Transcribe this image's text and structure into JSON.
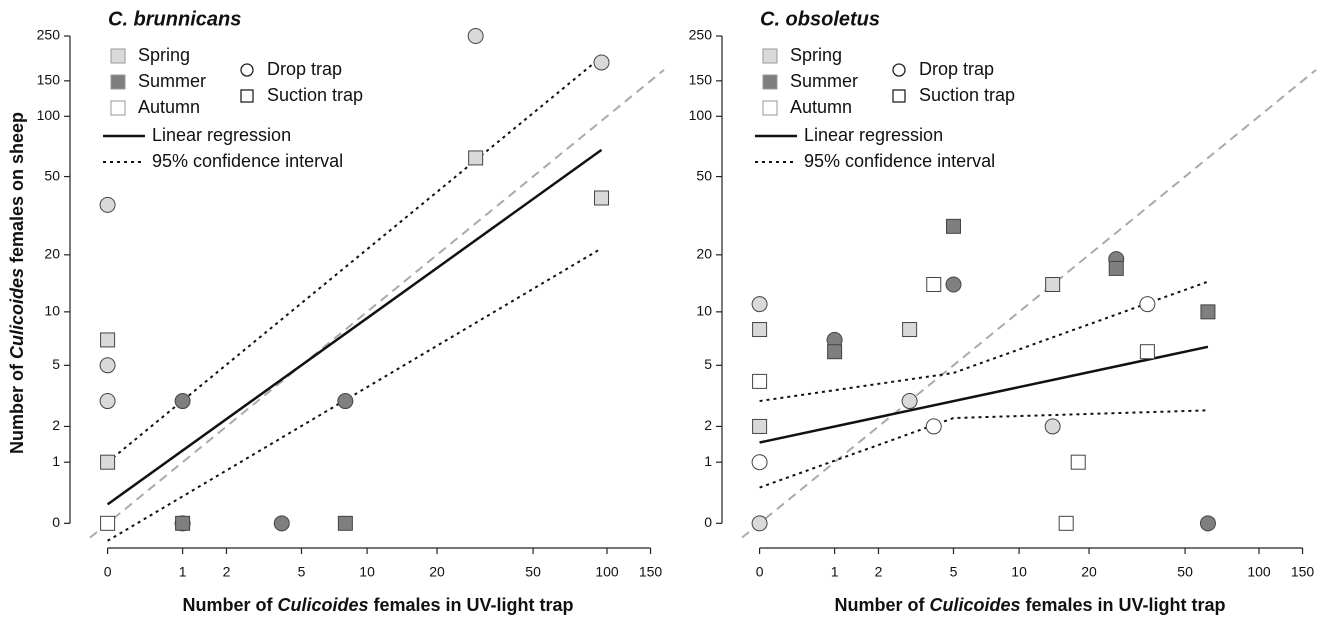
{
  "chart_data": [
    {
      "type": "scatter",
      "title": "C. brunnicans",
      "x_label": [
        "Number of ",
        "Culicoides",
        " females in UV-light trap"
      ],
      "y_label": [
        "Number of ",
        "Culicoides",
        " females on sheep"
      ],
      "xscale": "log1p",
      "yscale": "log1p",
      "xlim": [
        -0.15,
        170
      ],
      "ylim": [
        -0.2,
        300
      ],
      "xticks": [
        0,
        1,
        2,
        5,
        10,
        20,
        50,
        100,
        150
      ],
      "yticks": [
        0,
        1,
        2,
        5,
        10,
        20,
        50,
        100,
        150,
        250
      ],
      "legend": {
        "seasons": [
          {
            "name": "Spring",
            "color": "#d9d9d9"
          },
          {
            "name": "Summer",
            "color": "#7f7f7f"
          },
          {
            "name": "Autumn",
            "color": "#ffffff"
          }
        ],
        "traps": [
          {
            "name": "Drop trap",
            "marker": "circle"
          },
          {
            "name": "Suction trap",
            "marker": "square"
          }
        ]
      },
      "series": [
        {
          "season": 0,
          "trap": 0,
          "x": [
            0,
            0,
            0,
            29,
            95
          ],
          "y": [
            36,
            5,
            3,
            250,
            185
          ]
        },
        {
          "season": 0,
          "trap": 1,
          "x": [
            0,
            0,
            29,
            95
          ],
          "y": [
            7,
            1,
            62,
            39
          ]
        },
        {
          "season": 1,
          "trap": 0,
          "x": [
            1,
            1,
            4,
            8
          ],
          "y": [
            3,
            0,
            0,
            3
          ]
        },
        {
          "season": 1,
          "trap": 1,
          "x": [
            1,
            8
          ],
          "y": [
            0,
            0
          ]
        },
        {
          "season": 2,
          "trap": 1,
          "x": [
            0
          ],
          "y": [
            0
          ]
        }
      ],
      "regression": {
        "name": "Linear regression",
        "x": [
          0,
          95
        ],
        "y": [
          0.24,
          68
        ]
      },
      "ci": {
        "name": "95% confidence interval",
        "upper": {
          "x": [
            0,
            95
          ],
          "y": [
            1,
            197
          ]
        },
        "lower": {
          "x": [
            0,
            95
          ],
          "y": [
            -0.18,
            21.6
          ]
        }
      },
      "identity_line": true
    },
    {
      "type": "scatter",
      "title": "C. obsoletus",
      "x_label": [
        "Number of ",
        "Culicoides",
        " females in UV-light trap"
      ],
      "xscale": "log1p",
      "yscale": "log1p",
      "xlim": [
        -0.15,
        170
      ],
      "ylim": [
        -0.2,
        300
      ],
      "xticks": [
        0,
        1,
        2,
        5,
        10,
        20,
        50,
        100,
        150
      ],
      "yticks": [
        0,
        1,
        2,
        5,
        10,
        20,
        50,
        100,
        150,
        250
      ],
      "legend": {
        "seasons": [
          {
            "name": "Spring",
            "color": "#d9d9d9"
          },
          {
            "name": "Summer",
            "color": "#7f7f7f"
          },
          {
            "name": "Autumn",
            "color": "#ffffff"
          }
        ],
        "traps": [
          {
            "name": "Drop trap",
            "marker": "circle"
          },
          {
            "name": "Suction trap",
            "marker": "square"
          }
        ]
      },
      "series": [
        {
          "season": 0,
          "trap": 0,
          "x": [
            0,
            3,
            14,
            0
          ],
          "y": [
            11,
            3,
            2,
            0
          ]
        },
        {
          "season": 0,
          "trap": 1,
          "x": [
            0,
            3,
            14,
            0
          ],
          "y": [
            8,
            8,
            14,
            2
          ]
        },
        {
          "season": 1,
          "trap": 0,
          "x": [
            1,
            5,
            26,
            62
          ],
          "y": [
            7,
            14,
            19,
            0
          ]
        },
        {
          "season": 1,
          "trap": 1,
          "x": [
            1,
            5,
            26,
            62
          ],
          "y": [
            6,
            28,
            17,
            10
          ]
        },
        {
          "season": 2,
          "trap": 0,
          "x": [
            0,
            4,
            35
          ],
          "y": [
            1,
            2,
            11
          ]
        },
        {
          "season": 2,
          "trap": 1,
          "x": [
            0,
            4,
            16,
            18,
            35
          ],
          "y": [
            4,
            14,
            0,
            1,
            6
          ]
        }
      ],
      "regression": {
        "name": "Linear regression",
        "x": [
          0,
          62
        ],
        "y": [
          1.5,
          6.4
        ]
      },
      "ci": {
        "name": "95% confidence interval",
        "upper": {
          "x": [
            0,
            5,
            62
          ],
          "y": [
            3.0,
            4.5,
            14.5
          ]
        },
        "lower": {
          "x": [
            0,
            5,
            62
          ],
          "y": [
            0.5,
            2.3,
            2.6
          ]
        }
      },
      "identity_line": true
    }
  ]
}
